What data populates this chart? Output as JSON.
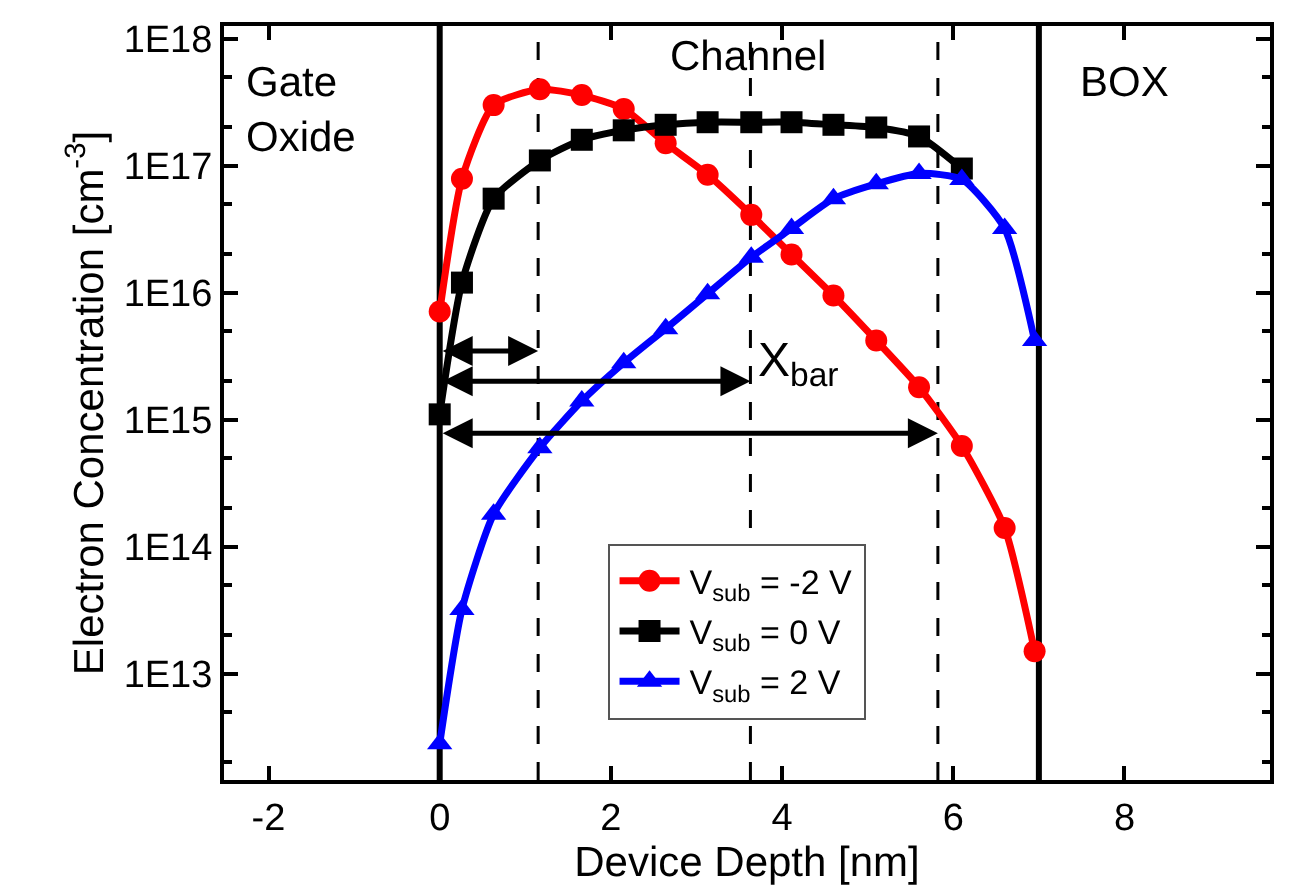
{
  "chart_data": {
    "type": "line",
    "xlabel": "Device Depth [nm]",
    "ylabel": "Electron Concentration [cm$^{-3}$]",
    "x": [
      0,
      0.26,
      0.63,
      1.17,
      1.66,
      2.15,
      2.64,
      3.13,
      3.64,
      4.11,
      4.6,
      5.1,
      5.6,
      6.1,
      6.6,
      6.95
    ],
    "series": [
      {
        "name": "V$_{sub}$ = -2 V",
        "color": "#ff0000",
        "marker": "circle",
        "values": [
          7100000000000000.0,
          7.9e+16,
          3e+17,
          4e+17,
          3.6e+17,
          2.8e+17,
          1.5e+17,
          8.5e+16,
          4.1e+16,
          2e+16,
          9500000000000000.0,
          4200000000000000.0,
          1800000000000000.0,
          620000000000000.0,
          140000000000000.0,
          15000000000000.0
        ]
      },
      {
        "name": "V$_{sub}$ = 0 V",
        "color": "#000000",
        "marker": "square",
        "values": [
          1100000000000000.0,
          1.2e+16,
          5.5e+16,
          1.1e+17,
          1.6e+17,
          1.9e+17,
          2.1e+17,
          2.2e+17,
          2.2e+17,
          2.2e+17,
          2.1e+17,
          2e+17,
          1.7e+17,
          9.5e+16,
          null,
          null
        ]
      },
      {
        "name": "V$_{sub}$ = 2 V",
        "color": "#0000ff",
        "marker": "triangle",
        "values": [
          2800000000000.0,
          32000000000000.0,
          180000000000000.0,
          600000000000000.0,
          1400000000000000.0,
          2800000000000000.0,
          5200000000000000.0,
          9800000000000000.0,
          1.9e+16,
          3.2e+16,
          5.5e+16,
          7.2e+16,
          8.7e+16,
          7.8e+16,
          3.2e+16,
          4200000000000000.0
        ]
      }
    ],
    "xlim": [
      -2.52,
      9.7
    ],
    "xticks": [
      -2,
      0,
      2,
      4,
      6,
      8
    ],
    "ylim": [
      1450000000000.0,
      1.26e+18
    ],
    "yticks": [
      {
        "value": 10000000000000.0,
        "label": "1E13"
      },
      {
        "value": 100000000000000.0,
        "label": "1E14"
      },
      {
        "value": 1000000000000000.0,
        "label": "1E15"
      },
      {
        "value": 1e+16,
        "label": "1E16"
      },
      {
        "value": 1e+17,
        "label": "1E17"
      },
      {
        "value": 1e+18,
        "label": "1E18"
      }
    ],
    "log": "y",
    "legend": "bottom",
    "line_style": "solid",
    "ref_lines": [
      {
        "axis": "x",
        "value": 0,
        "color": "#000000",
        "line_style": "solid"
      },
      {
        "axis": "x",
        "value": 7,
        "color": "#000000",
        "line_style": "solid"
      },
      {
        "axis": "x",
        "value": 1.15,
        "color": "#000000",
        "line_style": "dashed"
      },
      {
        "axis": "x",
        "value": 3.63,
        "color": "#000000",
        "line_style": "dashed"
      },
      {
        "axis": "x",
        "value": 5.82,
        "color": "#000000",
        "line_style": "dashed"
      }
    ],
    "annotations": [
      "Gate\nOxide",
      "Channel",
      "BOX",
      {
        "text": "X$_{bar}$",
        "x": 3.63,
        "y": 2000000000000000.0
      }
    ]
  }
}
